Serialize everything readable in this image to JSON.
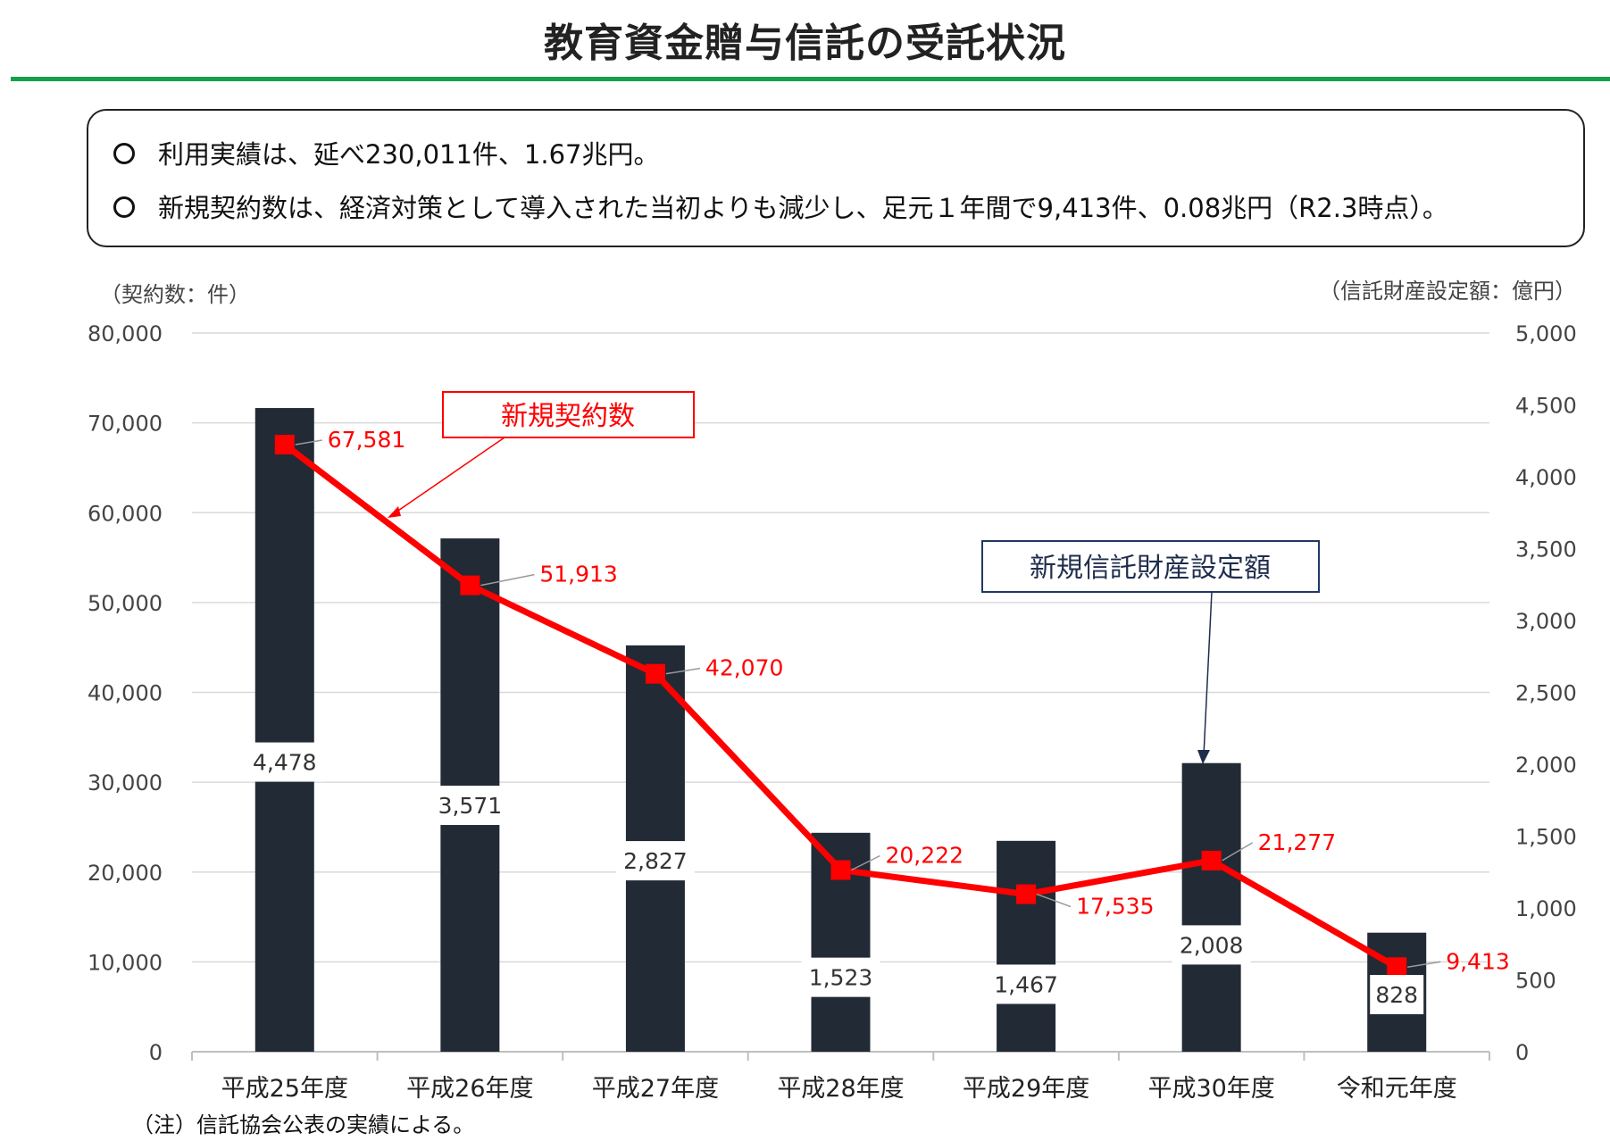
{
  "header": {
    "title": "教育資金贈与信託の受託状況"
  },
  "summary": {
    "bullets": [
      "利用実績は、延べ230,011件、1.67兆円。",
      "新規契約数は、経済対策として導入された当初よりも減少し、足元１年間で9,413件、0.08兆円（R2.3時点）。"
    ]
  },
  "footnote": "（注）信託協会公表の実績による。",
  "colors": {
    "accent_rule": "#16a04c",
    "bar": "#222a35",
    "line": "#ff0000",
    "callout_box_navy": "#1f3864"
  },
  "chart_data": {
    "type": "bar",
    "categories": [
      "平成25年度",
      "平成26年度",
      "平成27年度",
      "平成28年度",
      "平成29年度",
      "平成30年度",
      "令和元年度"
    ],
    "series": [
      {
        "name": "新規信託財産設定額",
        "kind": "bar",
        "axis": "right",
        "values": [
          4478,
          3571,
          2827,
          1523,
          1467,
          2008,
          828
        ],
        "labels": [
          "4,478",
          "3,571",
          "2,827",
          "1,523",
          "1,467",
          "2,008",
          "828"
        ]
      },
      {
        "name": "新規契約数",
        "kind": "line",
        "axis": "left",
        "values": [
          67581,
          51913,
          42070,
          20222,
          17535,
          21277,
          9413
        ],
        "labels": [
          "67,581",
          "51,913",
          "42,070",
          "20,222",
          "17,535",
          "21,277",
          "9,413"
        ]
      }
    ],
    "left_axis": {
      "label": "（契約数：件）",
      "ylim": [
        0,
        80000
      ],
      "ticks": [
        "0",
        "10,000",
        "20,000",
        "30,000",
        "40,000",
        "50,000",
        "60,000",
        "70,000",
        "80,000"
      ]
    },
    "right_axis": {
      "label": "（信託財産設定額：億円）",
      "ylim": [
        0,
        5000
      ],
      "ticks": [
        "0",
        "500",
        "1,000",
        "1,500",
        "2,000",
        "2,500",
        "3,000",
        "3,500",
        "4,000",
        "4,500",
        "5,000"
      ]
    },
    "grid": true,
    "callouts": {
      "line": "新規契約数",
      "bar": "新規信託財産設定額"
    }
  }
}
